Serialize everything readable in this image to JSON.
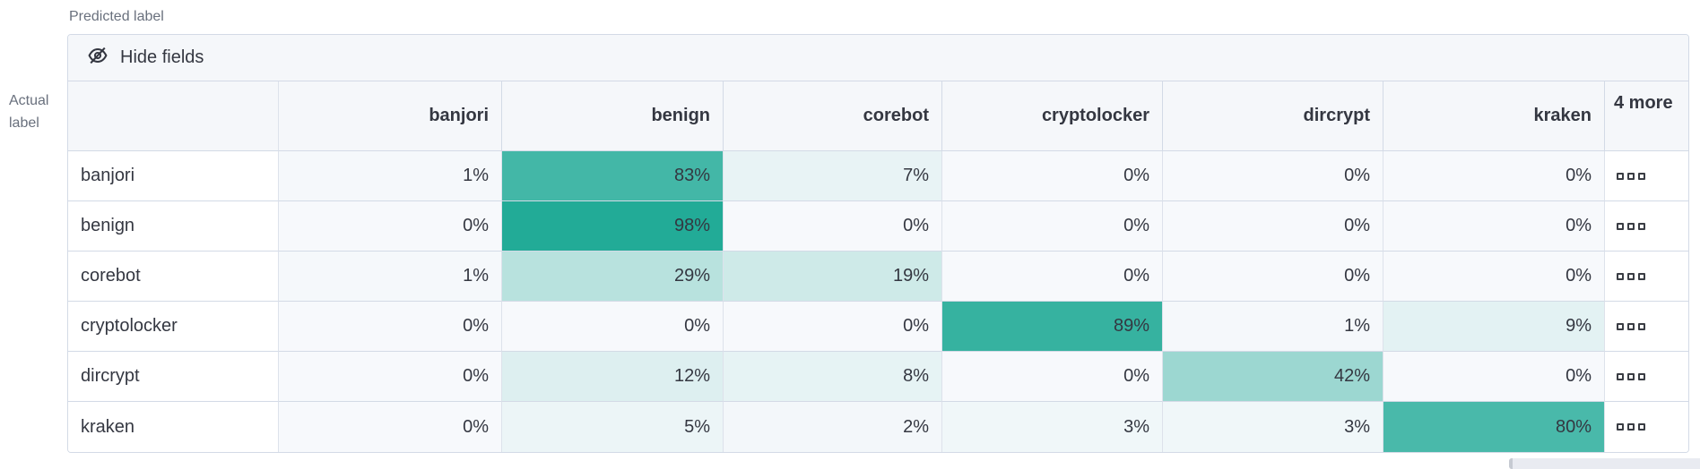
{
  "labels": {
    "predicted": "Predicted label",
    "actual": "Actual label"
  },
  "toolbar": {
    "hide_fields": "Hide fields",
    "icon": "eye-closed-icon"
  },
  "chart_data": {
    "type": "heatmap",
    "x_label": "Predicted label",
    "y_label": "Actual label",
    "columns": [
      "banjori",
      "benign",
      "corebot",
      "cryptolocker",
      "dircrypt",
      "kraken"
    ],
    "hidden_columns_label": "4 more",
    "rows": [
      "banjori",
      "benign",
      "corebot",
      "cryptolocker",
      "dircrypt",
      "kraken"
    ],
    "values": [
      [
        1,
        83,
        7,
        0,
        0,
        0
      ],
      [
        0,
        98,
        0,
        0,
        0,
        0
      ],
      [
        1,
        29,
        19,
        0,
        0,
        0
      ],
      [
        0,
        0,
        0,
        89,
        1,
        9
      ],
      [
        0,
        12,
        8,
        0,
        42,
        0
      ],
      [
        0,
        5,
        2,
        3,
        3,
        80
      ]
    ],
    "value_suffix": "%",
    "value_range": [
      0,
      100
    ],
    "color_base": "#F7F9FC",
    "color_accent": "#1EA995",
    "more_cell_icon": "boxes-horizontal-icon"
  }
}
